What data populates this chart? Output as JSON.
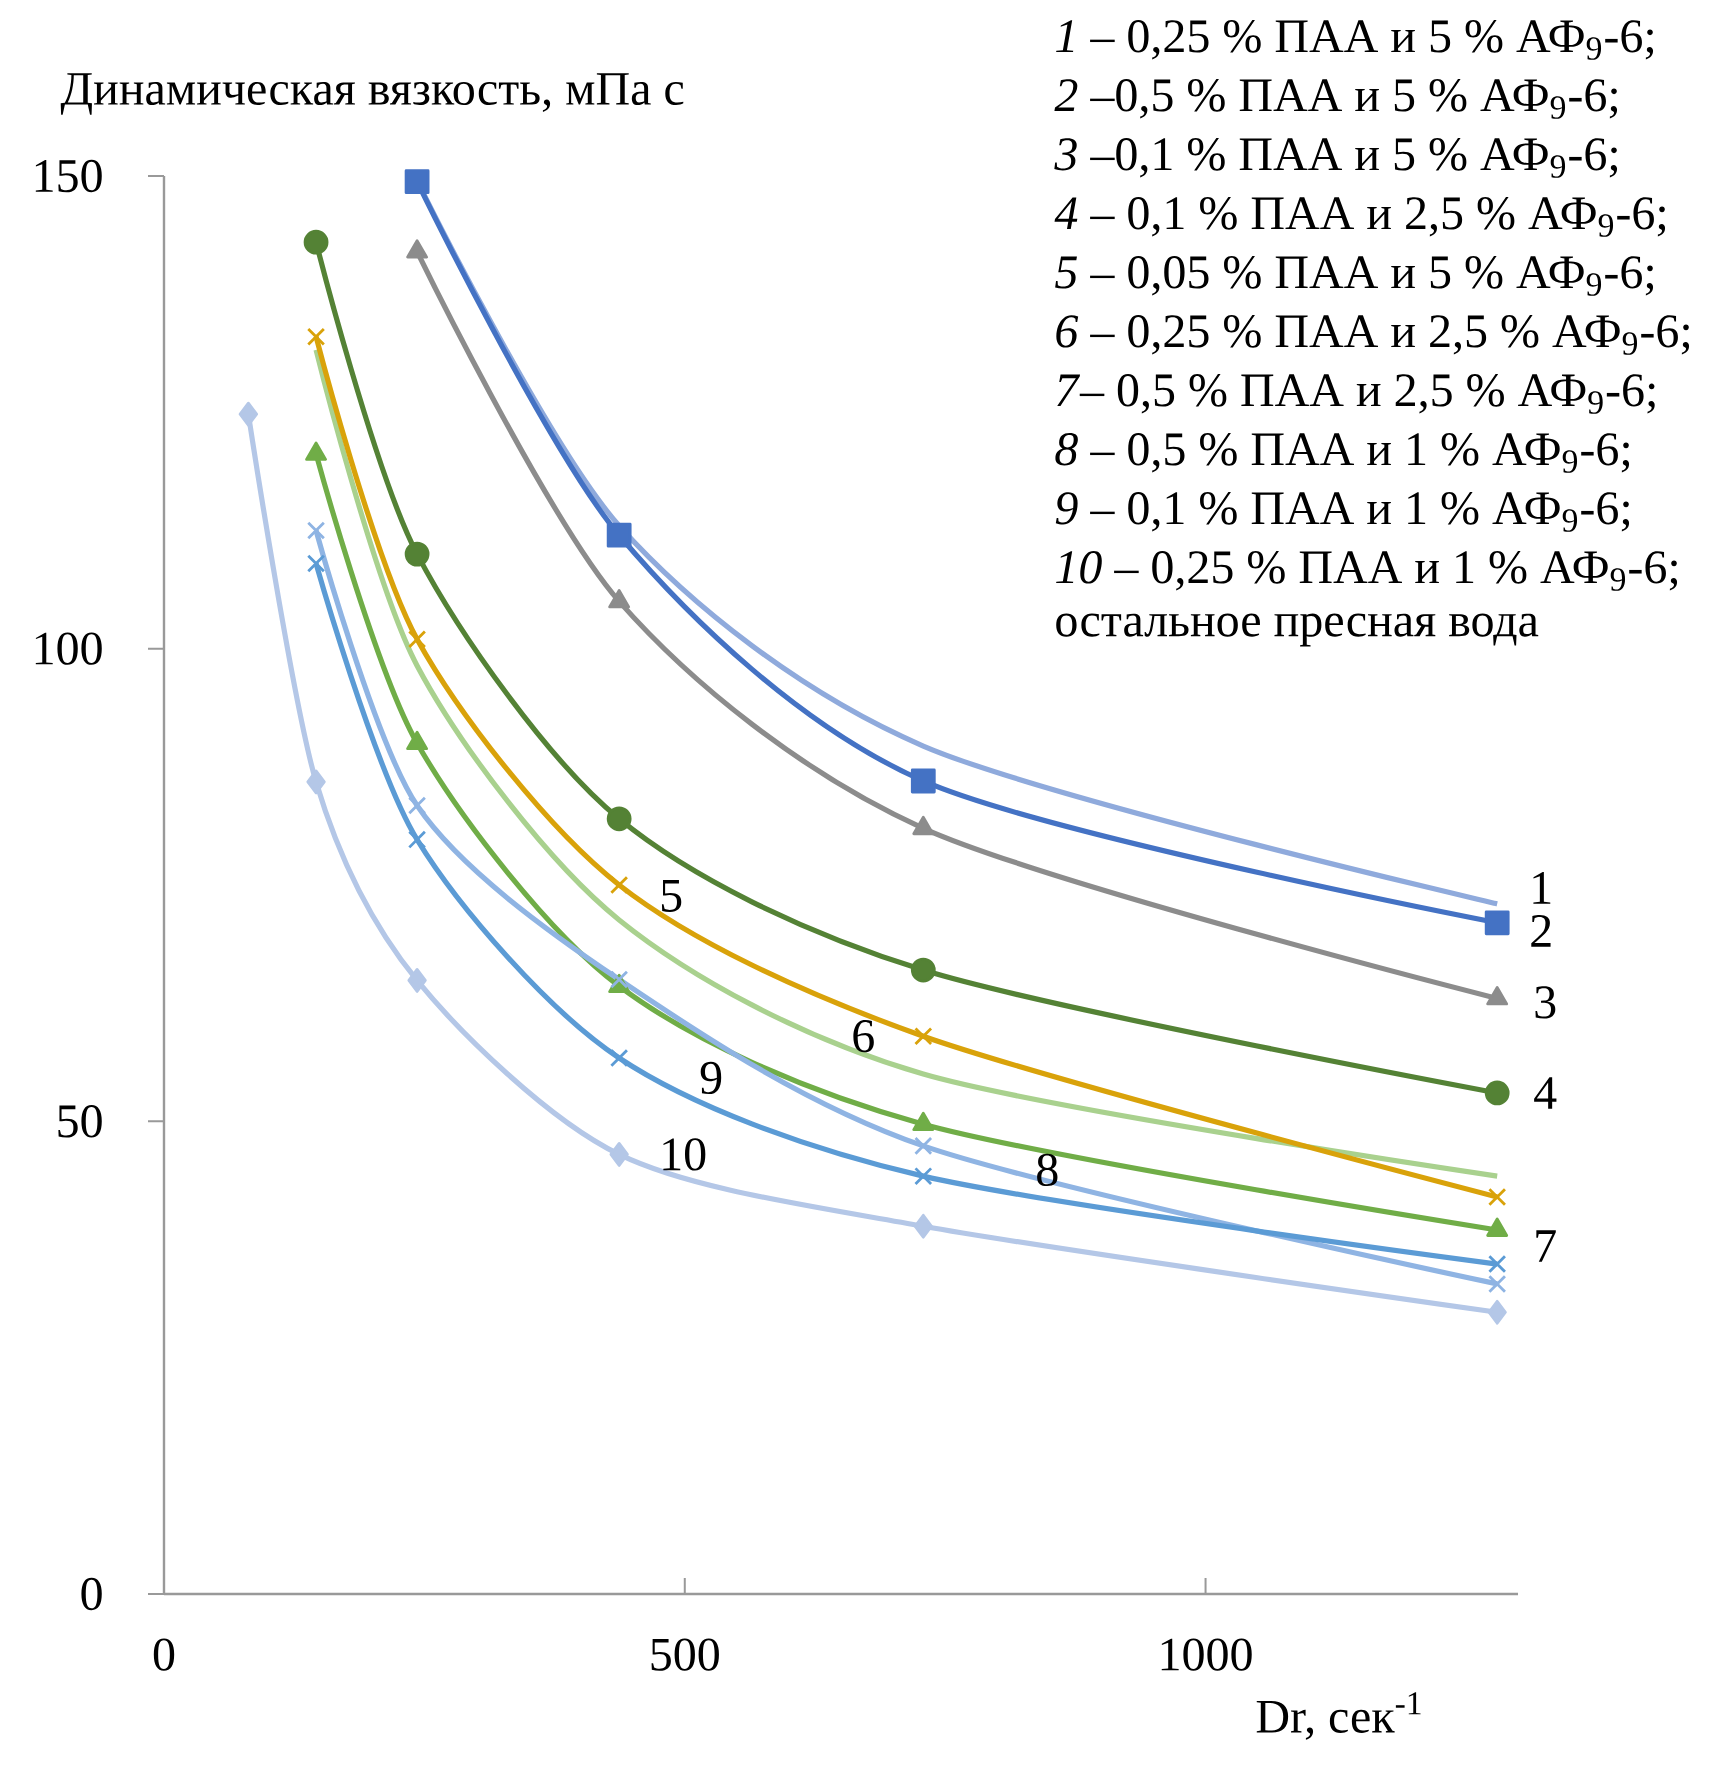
{
  "chart_data": {
    "type": "line",
    "xlabel": "Dr, сек$^{-1}$",
    "ylabel": "Динамическая вязкость, мПа с",
    "x": [
      81,
      146,
      243,
      437,
      729,
      1280
    ],
    "xlim": [
      0,
      1300
    ],
    "ylim": [
      0,
      150
    ],
    "xticks": [
      0,
      500,
      1000
    ],
    "yticks": [
      0,
      50,
      100,
      150
    ],
    "line_style": "solid",
    "series": [
      {
        "color": "#8faadc",
        "marker": "none",
        "values": [
          null,
          null,
          149.5,
          113,
          89.7,
          73
        ]
      },
      {
        "color": "#4472c4",
        "marker": "square",
        "values": [
          null,
          null,
          149.4,
          112,
          86,
          71
        ]
      },
      {
        "color": "#8c8c8c",
        "marker": "triangle",
        "values": [
          null,
          null,
          142,
          105,
          81,
          63
        ]
      },
      {
        "color": "#548235",
        "marker": "circle",
        "values": [
          null,
          143,
          110,
          82,
          66,
          53
        ]
      },
      {
        "color": "#a9d18e",
        "marker": "none",
        "values": [
          null,
          131.6,
          98.2,
          71.3,
          55,
          44.2
        ]
      },
      {
        "color": "#d9a20a",
        "marker": "cross",
        "values": [
          null,
          133,
          101,
          75,
          59,
          42
        ]
      },
      {
        "color": "#70ad47",
        "marker": "triangle",
        "values": [
          null,
          120.6,
          90,
          64.3,
          49.7,
          38.5
        ]
      },
      {
        "color": "#8fb4e3",
        "marker": "cross",
        "values": [
          null,
          112.5,
          83.4,
          65,
          47.4,
          32.8
        ]
      },
      {
        "color": "#5b9bd5",
        "marker": "cross",
        "values": [
          null,
          109,
          79.8,
          56.7,
          44.2,
          34.9
        ]
      },
      {
        "color": "#b4c7e7",
        "marker": "diamond",
        "values": [
          124.8,
          85.9,
          64.9,
          46.5,
          38.9,
          29.8
        ]
      }
    ],
    "annotations": [
      "*1* – 0,25 % ПАА и 5 % АФ$_{9}$-6;",
      "*2* –0,5 % ПАА и 5 % АФ$_{9}$-6;",
      "*3* –0,1 % ПАА и 5 % АФ$_{9}$-6;",
      "*4* – 0,1 % ПАА и 2,5 % АФ$_{9}$-6;",
      "*5* – 0,05 % ПАА и 5 % АФ$_{9}$-6;",
      "*6* – 0,25 % ПАА и 2,5 % АФ$_{9}$-6;",
      "*7*– 0,5 % ПАА и 2,5 % АФ$_{9}$-6;",
      "*8* – 0,5 % ПАА и 1 % АФ$_{9}$-6;",
      "*9* – 0,1 % ПАА и 1 % АФ$_{9}$-6;",
      "*10* – 0,25 % ПАА и 1 % АФ$_{9}$-6;",
      "остальное пресная вода",
      {
        "text": "1",
        "x": 1280,
        "y": 73
      },
      {
        "text": "2",
        "x": 1280,
        "y": 71
      },
      {
        "text": "3",
        "x": 1280,
        "y": 63
      },
      {
        "text": "4",
        "x": 1280,
        "y": 53
      },
      {
        "text": "7",
        "x": 1280,
        "y": 38.5
      },
      {
        "text": "5",
        "x": 437,
        "y": 71.3
      },
      {
        "text": "6",
        "x": 729,
        "y": 59
      },
      {
        "text": "8",
        "x": 729,
        "y": 47.4
      },
      {
        "text": "9",
        "x": 437,
        "y": 56.7
      },
      {
        "text": "10",
        "x": 437,
        "y": 46.5
      }
    ]
  }
}
